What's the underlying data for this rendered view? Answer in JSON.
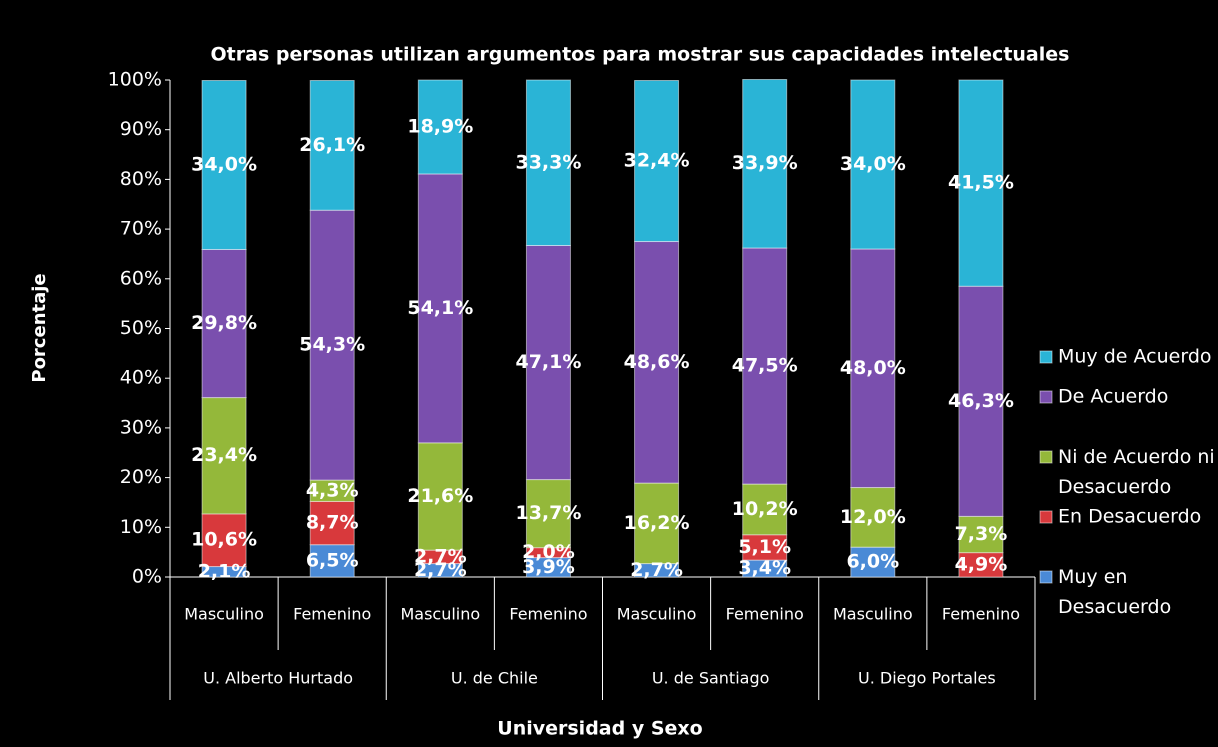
{
  "chart_data": {
    "type": "stacked_bar",
    "title": "Otras personas utilizan  argumentos para mostrar sus capacidades intelectuales",
    "y_label": "Porcentaje",
    "x_label": "Universidad y Sexo",
    "categories": [
      "Masculino",
      "Femenino",
      "Masculino",
      "Femenino",
      "Masculino",
      "Femenino",
      "Masculino",
      "Femenino"
    ],
    "groups": [
      "U. Alberto Hurtado",
      "U. de Chile",
      "U. de Santiago",
      "U. Diego Portales"
    ],
    "series": [
      {
        "name": "Muy en Desacuerdo",
        "color": "#4a8ad6",
        "values": [
          2.1,
          6.5,
          2.7,
          3.9,
          2.7,
          3.4,
          6.0,
          null
        ],
        "value_labels": [
          "2,1%",
          "6,5%",
          "2,7%",
          "3,9%",
          "2,7%",
          "3,4%",
          "6,0%",
          null
        ]
      },
      {
        "name": "En Desacuerdo",
        "color": "#d8393c",
        "values": [
          10.6,
          8.7,
          2.7,
          2.0,
          null,
          5.1,
          null,
          4.9
        ],
        "value_labels": [
          "10,6%",
          "8,7%",
          "2,7%",
          "2,0%",
          null,
          "5,1%",
          null,
          "4,9%"
        ]
      },
      {
        "name": "Ni de Acuerdo ni Desacuerdo",
        "color": "#94b83a",
        "values": [
          23.4,
          4.3,
          21.6,
          13.7,
          16.2,
          10.2,
          12.0,
          7.3
        ],
        "value_labels": [
          "23,4%",
          "4,3%",
          "21,6%",
          "13,7%",
          "16,2%",
          "10,2%",
          "12,0%",
          "7,3%"
        ]
      },
      {
        "name": "De Acuerdo",
        "color": "#7a4fae",
        "values": [
          29.8,
          54.3,
          54.1,
          47.1,
          48.6,
          47.5,
          48.0,
          46.3
        ],
        "value_labels": [
          "29,8%",
          "54,3%",
          "54,1%",
          "47,1%",
          "48,6%",
          "47,5%",
          "48,0%",
          "46,3%"
        ]
      },
      {
        "name": "Muy de Acuerdo",
        "color": "#2ab4d6",
        "values": [
          34.0,
          26.1,
          18.9,
          33.3,
          32.4,
          33.9,
          34.0,
          41.5
        ],
        "value_labels": [
          "34,0%",
          "26,1%",
          "18,9%",
          "33,3%",
          "32,4%",
          "33,9%",
          "34,0%",
          "41,5%"
        ]
      }
    ],
    "ylim": [
      0,
      100
    ],
    "yticks": [
      {
        "value": 0,
        "label": "0%"
      },
      {
        "value": 10,
        "label": "10%"
      },
      {
        "value": 20,
        "label": "20%"
      },
      {
        "value": 30,
        "label": "30%"
      },
      {
        "value": 40,
        "label": "40%"
      },
      {
        "value": 50,
        "label": "50%"
      },
      {
        "value": 60,
        "label": "60%"
      },
      {
        "value": 70,
        "label": "70%"
      },
      {
        "value": 80,
        "label": "80%"
      },
      {
        "value": 90,
        "label": "90%"
      },
      {
        "value": 100,
        "label": "100%"
      }
    ],
    "legend": "right"
  }
}
